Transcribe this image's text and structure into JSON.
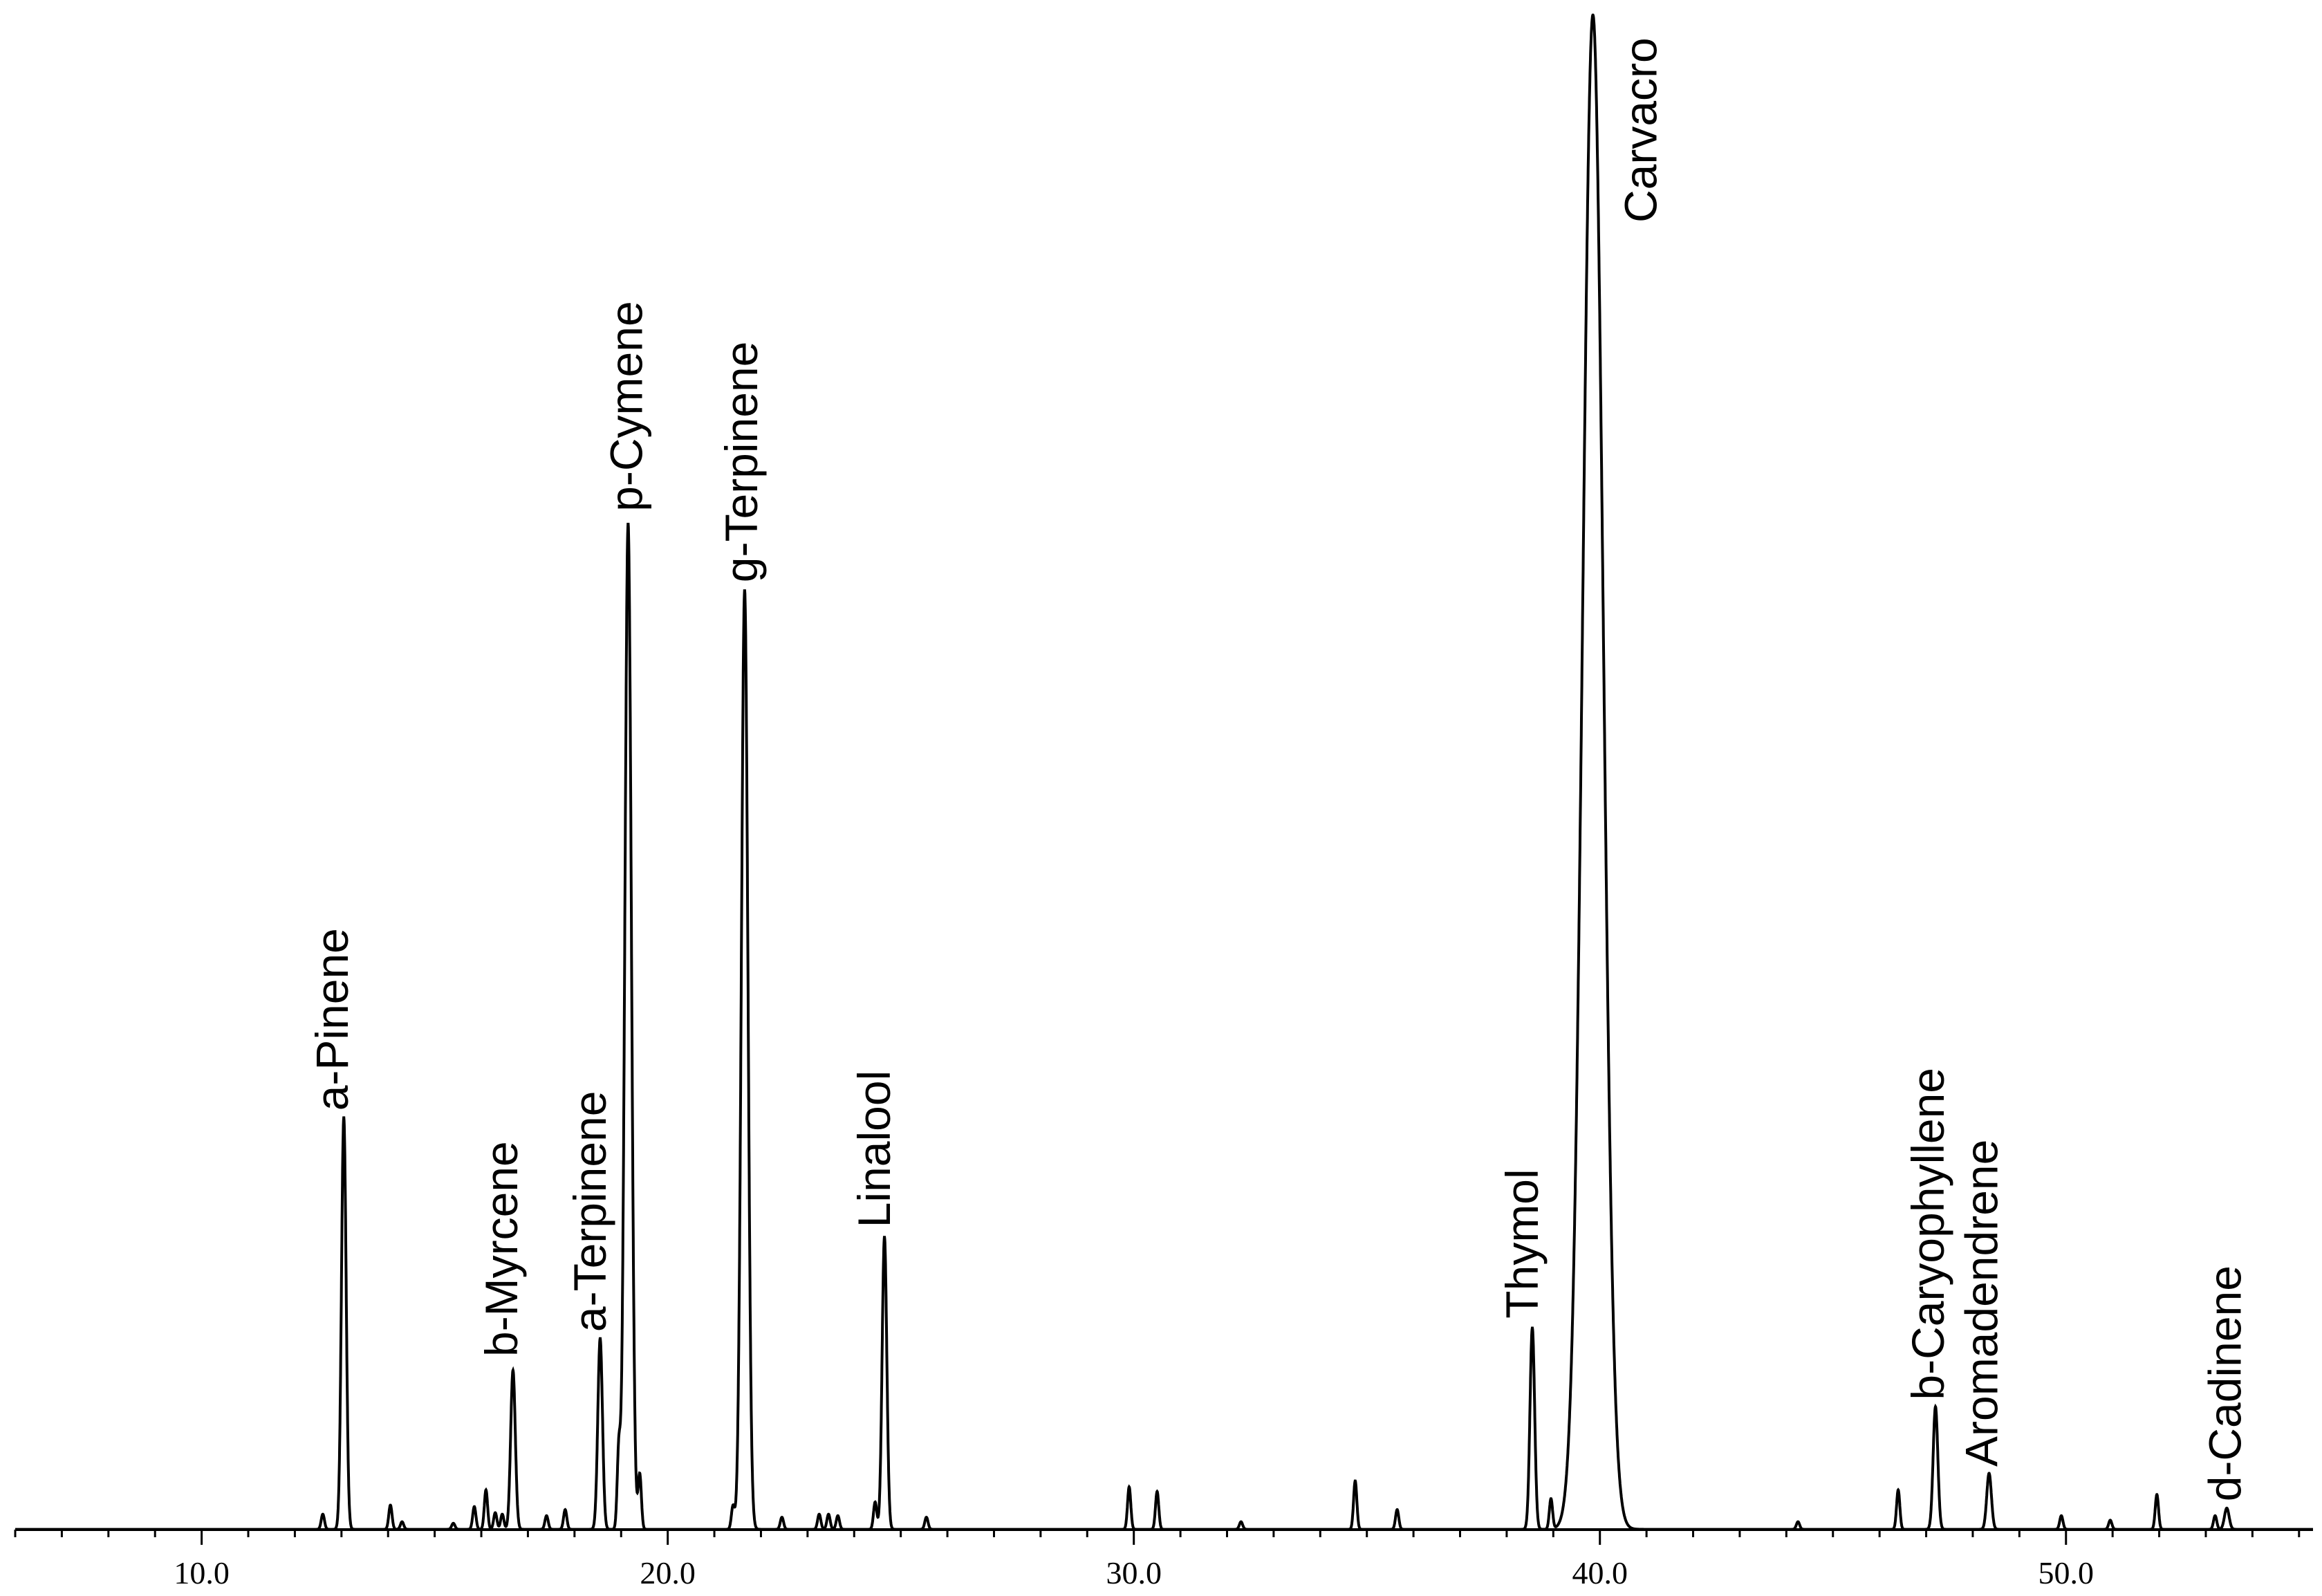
{
  "chart_data": {
    "type": "line",
    "title": "",
    "xlabel": "",
    "ylabel": "",
    "xlim": [
      6.0,
      55.3
    ],
    "ylim": [
      0,
      100
    ],
    "x_ticks": [
      {
        "value": 10,
        "label": "10.0"
      },
      {
        "value": 20,
        "label": "20.0"
      },
      {
        "value": 30,
        "label": "30.0"
      },
      {
        "value": 40,
        "label": "40.0"
      },
      {
        "value": 50,
        "label": "50.0"
      }
    ],
    "grid": false,
    "legend": "none",
    "line_color": "#000000",
    "peaks": [
      {
        "rt": 13.05,
        "height": 27.2,
        "label": "a-Pinene"
      },
      {
        "rt": 16.68,
        "height": 10.5,
        "label": "b-Myrcene"
      },
      {
        "rt": 18.55,
        "height": 12.6,
        "label": "a-Terpinene"
      },
      {
        "rt": 19.15,
        "height": 66.4,
        "label": "p-Cymene"
      },
      {
        "rt": 21.65,
        "height": 62.0,
        "label": "g-Terpinene"
      },
      {
        "rt": 24.65,
        "height": 19.3,
        "label": "Linalool"
      },
      {
        "rt": 38.55,
        "height": 13.3,
        "label": "Thymol"
      },
      {
        "rt": 39.85,
        "height": 100.0,
        "label": "Carvacro"
      },
      {
        "rt": 47.2,
        "height": 8.1,
        "label": "b-Caryophyllene"
      },
      {
        "rt": 48.35,
        "height": 3.7,
        "label": "Aromadendrene"
      },
      {
        "rt": 53.45,
        "height": 1.4,
        "label": "d-Cadinene"
      }
    ],
    "minor_peaks": [
      {
        "rt": 12.6,
        "height": 1.0
      },
      {
        "rt": 14.05,
        "height": 1.6
      },
      {
        "rt": 14.3,
        "height": 0.5
      },
      {
        "rt": 15.4,
        "height": 0.4
      },
      {
        "rt": 15.85,
        "height": 1.5
      },
      {
        "rt": 16.1,
        "height": 2.6
      },
      {
        "rt": 16.3,
        "height": 1.1
      },
      {
        "rt": 16.45,
        "height": 1.0
      },
      {
        "rt": 17.4,
        "height": 0.9
      },
      {
        "rt": 17.8,
        "height": 1.3
      },
      {
        "rt": 18.95,
        "height": 5.0
      },
      {
        "rt": 19.4,
        "height": 3.6
      },
      {
        "rt": 21.4,
        "height": 1.5
      },
      {
        "rt": 22.45,
        "height": 0.8
      },
      {
        "rt": 23.25,
        "height": 1.0
      },
      {
        "rt": 23.45,
        "height": 1.0
      },
      {
        "rt": 23.65,
        "height": 0.9
      },
      {
        "rt": 24.45,
        "height": 1.8
      },
      {
        "rt": 25.55,
        "height": 0.8
      },
      {
        "rt": 29.9,
        "height": 2.8
      },
      {
        "rt": 30.5,
        "height": 2.5
      },
      {
        "rt": 32.3,
        "height": 0.5
      },
      {
        "rt": 34.75,
        "height": 3.2
      },
      {
        "rt": 35.65,
        "height": 1.3
      },
      {
        "rt": 38.95,
        "height": 2.0
      },
      {
        "rt": 44.25,
        "height": 0.5
      },
      {
        "rt": 46.4,
        "height": 2.6
      },
      {
        "rt": 49.9,
        "height": 0.9
      },
      {
        "rt": 50.95,
        "height": 0.6
      },
      {
        "rt": 51.95,
        "height": 2.3
      },
      {
        "rt": 53.2,
        "height": 0.9
      }
    ]
  }
}
